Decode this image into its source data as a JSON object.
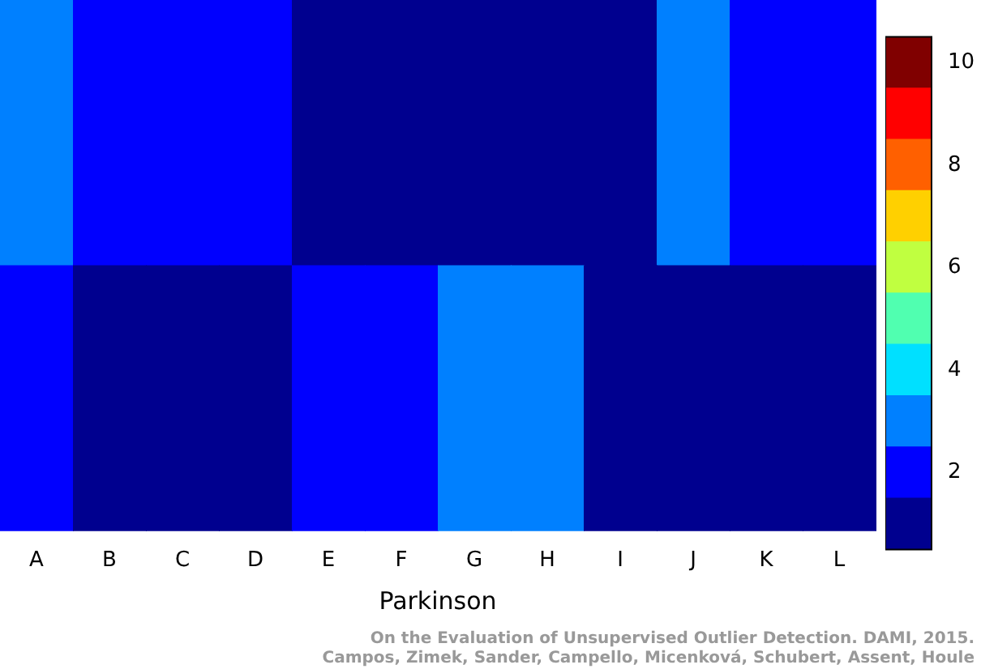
{
  "chart_data": {
    "type": "heatmap",
    "xlabel": "Parkinson",
    "categories": [
      "A",
      "B",
      "C",
      "D",
      "E",
      "F",
      "G",
      "H",
      "I",
      "J",
      "K",
      "L"
    ],
    "y_categories": [
      null,
      null
    ],
    "cells": [
      [
        3,
        2,
        2,
        2,
        1,
        1,
        1,
        1,
        1,
        3,
        2,
        2
      ],
      [
        2,
        1,
        1,
        1,
        2,
        2,
        3,
        3,
        1,
        1,
        1,
        1
      ]
    ],
    "clim": [
      0.5,
      10.5
    ],
    "cticks": [
      2,
      4,
      6,
      8,
      10
    ],
    "tick_labels": "x",
    "annotations": [
      "On the Evaluation of Unsupervised Outlier Detection. DAMI, 2015.",
      "Campos, Zimek, Sander, Campello, Micenková, Schubert, Assent, Houle"
    ]
  }
}
